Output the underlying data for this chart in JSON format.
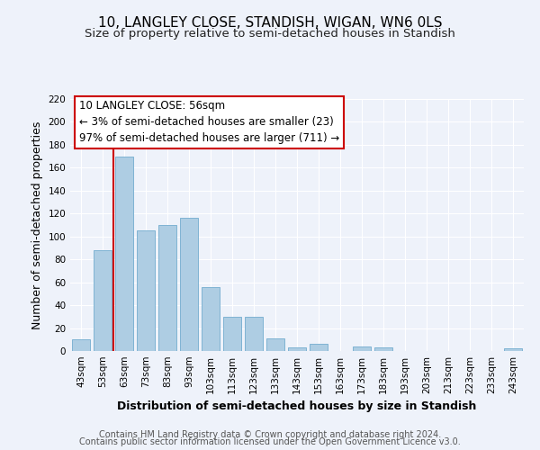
{
  "title": "10, LANGLEY CLOSE, STANDISH, WIGAN, WN6 0LS",
  "subtitle": "Size of property relative to semi-detached houses in Standish",
  "xlabel": "Distribution of semi-detached houses by size in Standish",
  "ylabel": "Number of semi-detached properties",
  "footer_line1": "Contains HM Land Registry data © Crown copyright and database right 2024.",
  "footer_line2": "Contains public sector information licensed under the Open Government Licence v3.0.",
  "annotation_title": "10 LANGLEY CLOSE: 56sqm",
  "annotation_line1": "← 3% of semi-detached houses are smaller (23)",
  "annotation_line2": "97% of semi-detached houses are larger (711) →",
  "bar_labels": [
    "43sqm",
    "53sqm",
    "63sqm",
    "73sqm",
    "83sqm",
    "93sqm",
    "103sqm",
    "113sqm",
    "123sqm",
    "133sqm",
    "143sqm",
    "153sqm",
    "163sqm",
    "173sqm",
    "183sqm",
    "193sqm",
    "203sqm",
    "213sqm",
    "223sqm",
    "233sqm",
    "243sqm"
  ],
  "bar_values": [
    10,
    88,
    170,
    105,
    110,
    116,
    56,
    30,
    30,
    11,
    3,
    6,
    0,
    4,
    3,
    0,
    0,
    0,
    0,
    0,
    2
  ],
  "bar_color": "#aecde3",
  "bar_edge_color": "#7fb3d3",
  "highlight_color": "#cc0000",
  "ylim": [
    0,
    220
  ],
  "yticks": [
    0,
    20,
    40,
    60,
    80,
    100,
    120,
    140,
    160,
    180,
    200,
    220
  ],
  "bg_color": "#eef2fa",
  "grid_color": "#ffffff",
  "title_fontsize": 11,
  "subtitle_fontsize": 9.5,
  "axis_label_fontsize": 9,
  "tick_fontsize": 7.5,
  "annotation_fontsize": 8.5,
  "footer_fontsize": 7
}
